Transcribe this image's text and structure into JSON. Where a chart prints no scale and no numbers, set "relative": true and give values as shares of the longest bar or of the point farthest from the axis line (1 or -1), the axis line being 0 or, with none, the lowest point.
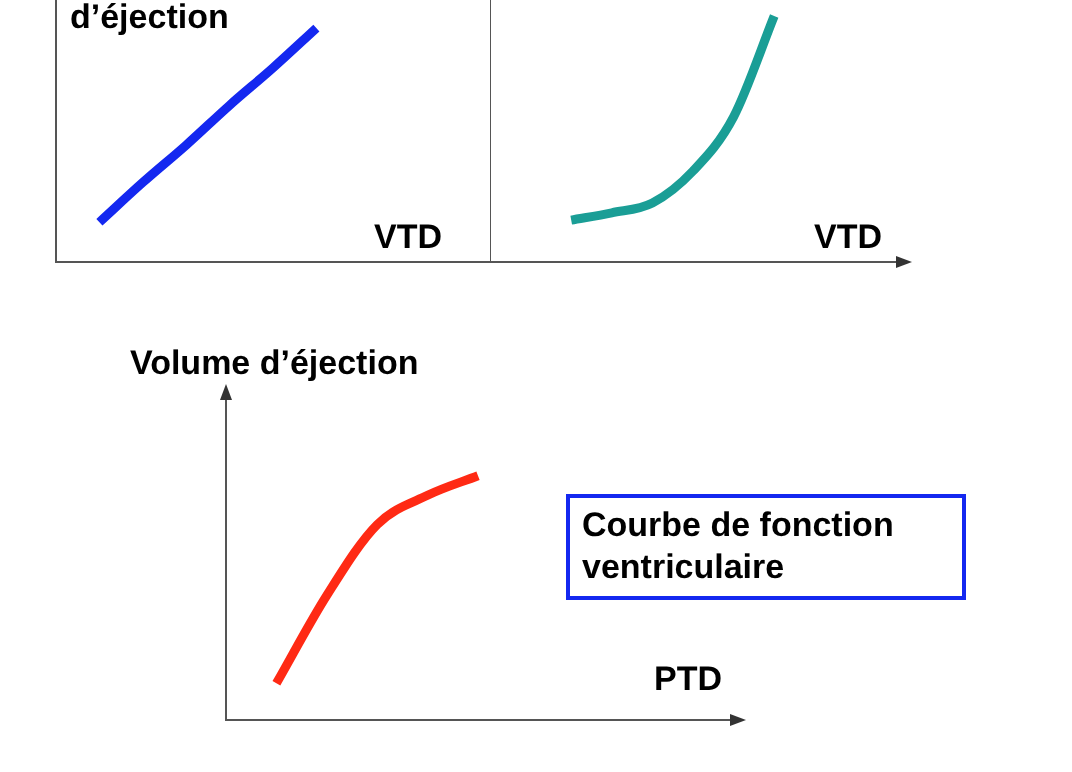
{
  "chart_data": [
    {
      "type": "line",
      "ylabel": "d’éjection",
      "xlabel": "VTD",
      "relative": true,
      "tick_labels": false,
      "grid": false,
      "legend": false,
      "marker": "none",
      "categories": [
        null,
        null,
        null,
        null,
        null,
        null,
        null,
        null,
        null,
        null,
        null
      ],
      "series": [
        {
          "color": "#1428f0",
          "values": [
            null,
            0.17,
            0.34,
            0.5,
            0.67,
            0.83,
            1,
            null,
            null,
            null,
            null
          ]
        }
      ]
    },
    {
      "type": "line",
      "xlabel": "VTD",
      "relative": true,
      "tick_labels": false,
      "grid": false,
      "legend": false,
      "marker": "none",
      "categories": [
        null,
        null,
        null,
        null,
        null,
        null,
        null,
        null,
        null,
        null,
        null
      ],
      "series": [
        {
          "color": "#1a9e96",
          "values": [
            null,
            null,
            0.17,
            0.2,
            0.24,
            0.37,
            0.59,
            1,
            null,
            null,
            null
          ]
        }
      ]
    },
    {
      "type": "line",
      "ylabel": "Volume d’éjection",
      "xlabel": "PTD",
      "relative": true,
      "tick_labels": false,
      "grid": false,
      "legend": false,
      "marker": "none",
      "annotations": [
        "Courbe de fonction ventriculaire"
      ],
      "categories": [
        null,
        null,
        null,
        null,
        null,
        null,
        null,
        null,
        null,
        null,
        null
      ],
      "series": [
        {
          "color": "#ff2a14",
          "values": [
            null,
            0.15,
            0.51,
            0.8,
            0.92,
            1,
            null,
            null,
            null,
            null,
            null
          ]
        }
      ]
    }
  ]
}
